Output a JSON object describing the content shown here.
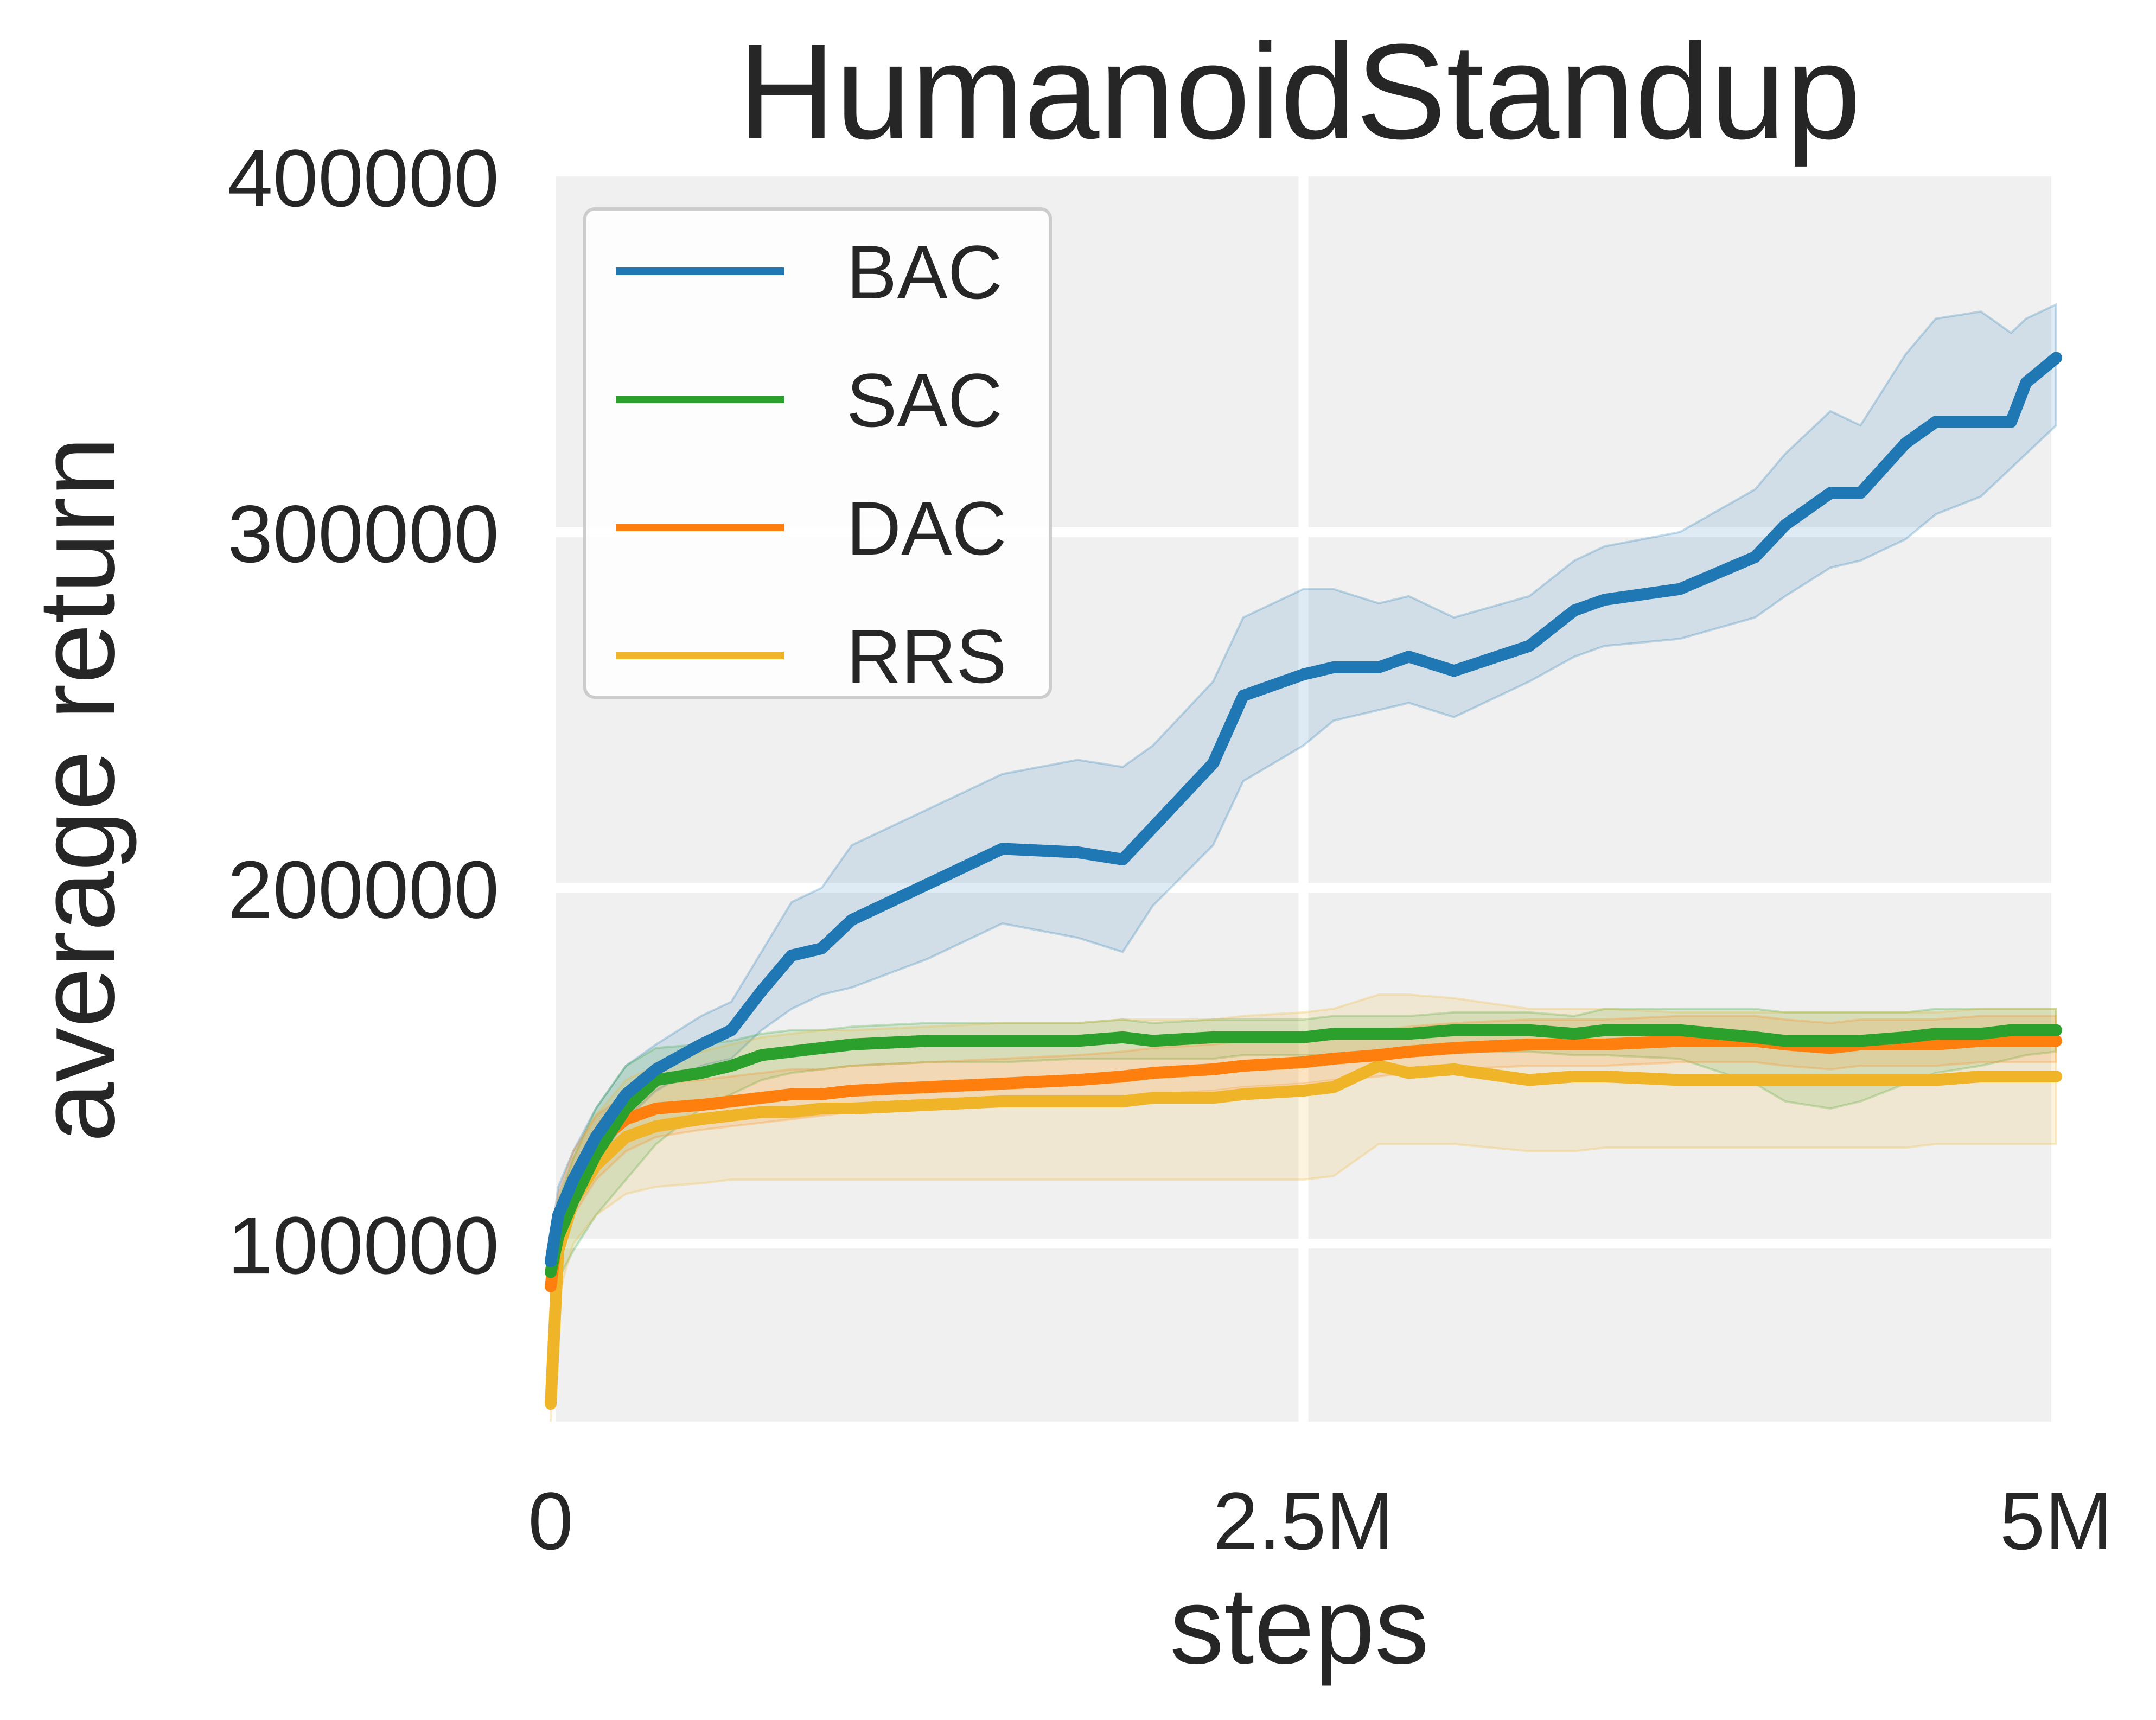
{
  "chart_data": {
    "type": "line",
    "title": "HumanoidStandup",
    "xlabel": "steps",
    "ylabel": "average return",
    "xlim": [
      0,
      5000000
    ],
    "ylim": [
      50000,
      400000
    ],
    "grid": true,
    "legend_position": "top-left",
    "x_ticks": [
      {
        "value": 0,
        "label": "0"
      },
      {
        "value": 2500000,
        "label": "2.5M"
      },
      {
        "value": 5000000,
        "label": "5M"
      }
    ],
    "y_ticks": [
      {
        "value": 100000,
        "label": "100000"
      },
      {
        "value": 200000,
        "label": "200000"
      },
      {
        "value": 300000,
        "label": "300000"
      },
      {
        "value": 400000,
        "label": "400000"
      }
    ],
    "x": [
      0,
      25000,
      75000,
      150000,
      250000,
      350000,
      500000,
      600000,
      700000,
      800000,
      900000,
      1000000,
      1250000,
      1500000,
      1750000,
      1900000,
      2000000,
      2200000,
      2300000,
      2500000,
      2600000,
      2750000,
      2850000,
      3000000,
      3250000,
      3400000,
      3500000,
      3750000,
      4000000,
      4100000,
      4250000,
      4350000,
      4500000,
      4600000,
      4750000,
      4850000,
      4900000,
      5000000
    ],
    "series": [
      {
        "name": "BAC",
        "color": "#1f77b4",
        "values": [
          95000,
          108000,
          118000,
          130000,
          142000,
          149000,
          156000,
          160000,
          171000,
          181000,
          183000,
          191000,
          201000,
          211000,
          210000,
          208000,
          217000,
          235000,
          254000,
          260000,
          262000,
          262000,
          265000,
          261000,
          268000,
          278000,
          281000,
          284000,
          293000,
          302000,
          311000,
          311000,
          325000,
          331000,
          331000,
          331000,
          342000,
          349000
        ],
        "band_low": [
          90000,
          100000,
          110000,
          122000,
          135000,
          143000,
          150000,
          152000,
          160000,
          166000,
          170000,
          172000,
          180000,
          190000,
          186000,
          182000,
          195000,
          212000,
          230000,
          240000,
          247000,
          250000,
          252000,
          248000,
          258000,
          265000,
          268000,
          270000,
          276000,
          282000,
          290000,
          292000,
          298000,
          305000,
          310000,
          318000,
          322000,
          330000
        ],
        "band_high": [
          100000,
          116000,
          126000,
          138000,
          150000,
          156000,
          164000,
          168000,
          182000,
          196000,
          200000,
          212000,
          222000,
          232000,
          236000,
          234000,
          240000,
          258000,
          276000,
          284000,
          284000,
          280000,
          282000,
          276000,
          282000,
          292000,
          296000,
          300000,
          312000,
          322000,
          334000,
          330000,
          350000,
          360000,
          362000,
          356000,
          360000,
          364000
        ]
      },
      {
        "name": "SAC",
        "color": "#2ca02c",
        "values": [
          92000,
          102000,
          112000,
          125000,
          138000,
          146000,
          148000,
          150000,
          153000,
          154000,
          155000,
          156000,
          157000,
          157000,
          157000,
          158000,
          157000,
          158000,
          158000,
          158000,
          159000,
          159000,
          159000,
          160000,
          160000,
          159000,
          160000,
          160000,
          158000,
          157000,
          157000,
          157000,
          158000,
          159000,
          159000,
          160000,
          160000,
          160000
        ],
        "band_low": [
          82000,
          90000,
          98000,
          108000,
          118000,
          128000,
          138000,
          142000,
          146000,
          148000,
          149000,
          150000,
          151000,
          151000,
          152000,
          152000,
          152000,
          152000,
          153000,
          153000,
          153000,
          153000,
          153000,
          154000,
          154000,
          153000,
          153000,
          152000,
          145000,
          140000,
          138000,
          140000,
          145000,
          148000,
          150000,
          152000,
          153000,
          154000
        ],
        "band_high": [
          100000,
          112000,
          124000,
          138000,
          150000,
          155000,
          156000,
          157000,
          159000,
          160000,
          160000,
          161000,
          162000,
          162000,
          162000,
          163000,
          162000,
          163000,
          163000,
          163000,
          164000,
          164000,
          164000,
          165000,
          165000,
          164000,
          166000,
          166000,
          166000,
          165000,
          165000,
          165000,
          165000,
          166000,
          166000,
          166000,
          166000,
          166000
        ]
      },
      {
        "name": "DAC",
        "color": "#ff7f0e",
        "values": [
          88000,
          105000,
          118000,
          128000,
          135000,
          138000,
          139000,
          140000,
          141000,
          142000,
          142000,
          143000,
          144000,
          145000,
          146000,
          147000,
          148000,
          149000,
          150000,
          151000,
          152000,
          153000,
          154000,
          155000,
          156000,
          156000,
          156000,
          157000,
          157000,
          156000,
          155000,
          156000,
          156000,
          156000,
          157000,
          157000,
          157000,
          157000
        ],
        "band_low": [
          80000,
          95000,
          108000,
          118000,
          126000,
          130000,
          132000,
          133000,
          134000,
          135000,
          136000,
          137000,
          138000,
          139000,
          140000,
          141000,
          142000,
          143000,
          144000,
          145000,
          146000,
          147000,
          148000,
          149000,
          150000,
          150000,
          150000,
          151000,
          151000,
          150000,
          149000,
          150000,
          150000,
          150000,
          151000,
          151000,
          151000,
          151000
        ],
        "band_high": [
          96000,
          114000,
          126000,
          136000,
          142000,
          145000,
          146000,
          147000,
          148000,
          149000,
          149000,
          150000,
          151000,
          152000,
          153000,
          154000,
          155000,
          156000,
          157000,
          158000,
          159000,
          160000,
          161000,
          162000,
          163000,
          163000,
          163000,
          164000,
          164000,
          163000,
          162000,
          163000,
          163000,
          163000,
          164000,
          164000,
          164000,
          164000
        ]
      },
      {
        "name": "RRS",
        "color": "#f0b429",
        "values": [
          55000,
          98000,
          112000,
          122000,
          130000,
          133000,
          135000,
          136000,
          137000,
          137000,
          138000,
          138000,
          139000,
          140000,
          140000,
          140000,
          141000,
          141000,
          142000,
          143000,
          144000,
          150000,
          148000,
          149000,
          146000,
          147000,
          147000,
          146000,
          146000,
          146000,
          146000,
          146000,
          146000,
          146000,
          147000,
          147000,
          147000,
          147000
        ],
        "band_low": [
          50000,
          85000,
          100000,
          108000,
          114000,
          116000,
          117000,
          118000,
          118000,
          118000,
          118000,
          118000,
          118000,
          118000,
          118000,
          118000,
          118000,
          118000,
          118000,
          118000,
          119000,
          128000,
          128000,
          128000,
          126000,
          126000,
          127000,
          127000,
          127000,
          127000,
          127000,
          127000,
          127000,
          128000,
          128000,
          128000,
          128000,
          128000
        ],
        "band_high": [
          60000,
          110000,
          124000,
          136000,
          146000,
          150000,
          154000,
          156000,
          158000,
          159000,
          160000,
          160000,
          161000,
          162000,
          162000,
          163000,
          163000,
          163000,
          164000,
          165000,
          166000,
          170000,
          170000,
          169000,
          166000,
          166000,
          166000,
          165000,
          165000,
          165000,
          165000,
          165000,
          165000,
          165000,
          166000,
          166000,
          166000,
          166000
        ]
      }
    ]
  }
}
